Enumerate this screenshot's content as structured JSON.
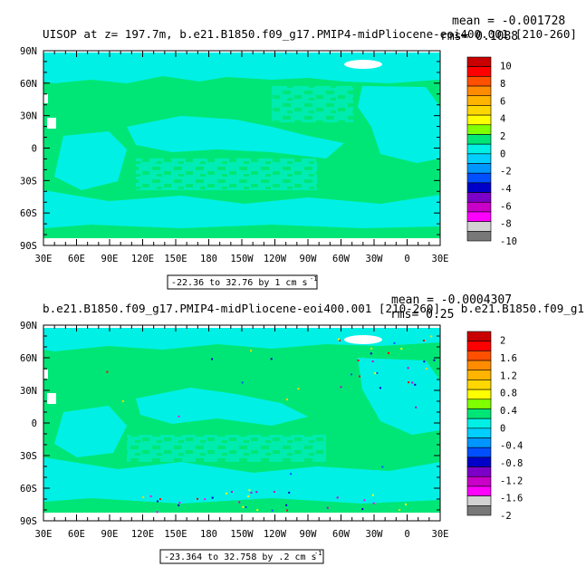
{
  "colors": {
    "ocean_main": "#00e676",
    "ocean_secondary": "#00f0e6",
    "land": "#ffffff",
    "frame": "#000000"
  },
  "chart_data": [
    {
      "type": "heatmap",
      "title": "UISOP at z= 197.7m, b.e21.B1850.f09_g17.PMIP4-midPliocene-eoi400.001 [210-260]",
      "stats": {
        "mean": "mean = -0.001728",
        "rms": "rms= 0.1088"
      },
      "range_label": "-22.36 to 32.76 by 1 cm s",
      "range_unit_exp": "-1",
      "x_ticks": [
        "30E",
        "60E",
        "90E",
        "120E",
        "150E",
        "180",
        "150W",
        "120W",
        "90W",
        "60W",
        "30W",
        "0",
        "30E"
      ],
      "y_ticks": [
        "90N",
        "60N",
        "30N",
        "0",
        "30S",
        "60S",
        "90S"
      ],
      "xlim": [
        30,
        390
      ],
      "ylim": [
        -90,
        90
      ],
      "colorbar": {
        "labels": [
          "10",
          "8",
          "6",
          "4",
          "2",
          "0",
          "-2",
          "-4",
          "-6",
          "-8",
          "-10"
        ],
        "colors": [
          "#c80000",
          "#ff0000",
          "#ff5000",
          "#ff8c00",
          "#ffb400",
          "#ffd700",
          "#ffff00",
          "#7fff00",
          "#00e676",
          "#00f0e6",
          "#00cfff",
          "#0096ff",
          "#0050ff",
          "#0000c8",
          "#7d00c8",
          "#c800c8",
          "#ff00ff",
          "#d2d2d2",
          "#787878"
        ]
      }
    },
    {
      "type": "heatmap",
      "title": "b.e21.B1850.f09_g17.PMIP4-midPliocene-eoi400.001 [210-260] - b.e21.B1850.f09_g1",
      "stats": {
        "mean": "mean = -0.0004307",
        "rms": "rms= 0.25"
      },
      "range_label": "-23.364 to 32.758 by .2 cm s",
      "range_unit_exp": "-1",
      "x_ticks": [
        "30E",
        "60E",
        "90E",
        "120E",
        "150E",
        "180",
        "150W",
        "120W",
        "90W",
        "60W",
        "30W",
        "0",
        "30E"
      ],
      "y_ticks": [
        "90N",
        "60N",
        "30N",
        "0",
        "30S",
        "60S",
        "90S"
      ],
      "xlim": [
        30,
        390
      ],
      "ylim": [
        -90,
        90
      ],
      "colorbar": {
        "labels": [
          "2",
          "1.6",
          "1.2",
          "0.8",
          "0.4",
          "0",
          "-0.4",
          "-0.8",
          "-1.2",
          "-1.6",
          "-2"
        ],
        "colors": [
          "#c80000",
          "#ff0000",
          "#ff5000",
          "#ff8c00",
          "#ffb400",
          "#ffd700",
          "#ffff00",
          "#7fff00",
          "#00e676",
          "#00f0e6",
          "#00cfff",
          "#0096ff",
          "#0050ff",
          "#0000c8",
          "#7d00c8",
          "#c800c8",
          "#ff00ff",
          "#d2d2d2",
          "#787878"
        ]
      }
    }
  ]
}
